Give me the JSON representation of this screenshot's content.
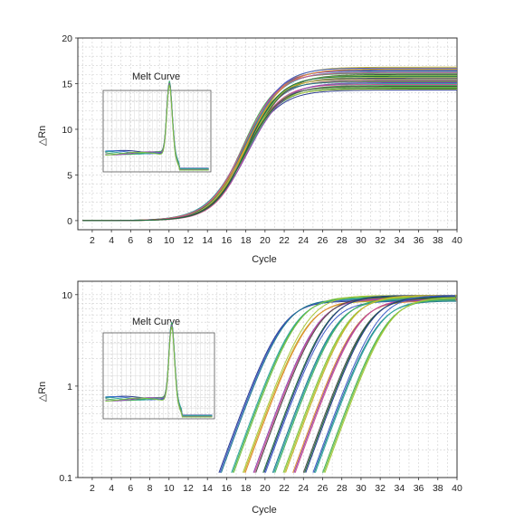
{
  "colors": {
    "grid": "#cfcfcf",
    "axis": "#333333",
    "series_palette": [
      "#2a3a8f",
      "#3b5bc7",
      "#1f7a8c",
      "#2fa8a0",
      "#46b05a",
      "#7cc242",
      "#a8c83a",
      "#c9b12a",
      "#e08a2e",
      "#8e44ad",
      "#d04f8f",
      "#4a4a4a",
      "#1a6b3a"
    ]
  },
  "chart_data": [
    {
      "type": "line",
      "name": "amplification-linear",
      "xlabel": "Cycle",
      "ylabel": "△Rn",
      "xlim": [
        0.5,
        40
      ],
      "ylim": [
        -1,
        20
      ],
      "y_scale": "linear",
      "x_ticks": [
        2,
        4,
        6,
        8,
        10,
        12,
        14,
        16,
        18,
        20,
        22,
        24,
        26,
        28,
        30,
        32,
        34,
        36,
        38,
        40
      ],
      "y_ticks": [
        0,
        5,
        10,
        15,
        20
      ],
      "y_tick_labels": [
        "0",
        "5",
        "10",
        "15",
        "20"
      ],
      "grid": true,
      "series_model": {
        "midpoint_cycle": [
          17.6,
          18.3
        ],
        "plateau": [
          14.3,
          16.9
        ],
        "slope": 0.55
      },
      "inset": {
        "type": "line",
        "title": "Melt Curve",
        "description_peak_position": 0.62,
        "grid": true
      }
    },
    {
      "type": "line",
      "name": "amplification-log",
      "xlabel": "Cycle",
      "ylabel": "△Rn",
      "xlim": [
        0.5,
        40
      ],
      "ylim": [
        0.1,
        14
      ],
      "y_scale": "log",
      "x_ticks": [
        2,
        4,
        6,
        8,
        10,
        12,
        14,
        16,
        18,
        20,
        22,
        24,
        26,
        28,
        30,
        32,
        34,
        36,
        38,
        40
      ],
      "y_ticks": [
        0.1,
        1,
        10
      ],
      "y_tick_labels": [
        "0.1",
        "1",
        "10"
      ],
      "grid": true,
      "series_model": {
        "first_cycle_at_0p1": [
          15.0,
          16.3,
          17.5,
          18.6,
          19.6,
          20.6,
          21.7,
          22.7,
          23.8,
          24.8,
          25.8
        ],
        "plateau": [
          8.5,
          9.8
        ]
      },
      "inset": {
        "type": "line",
        "title": "Melt Curve",
        "grid": true
      }
    }
  ]
}
